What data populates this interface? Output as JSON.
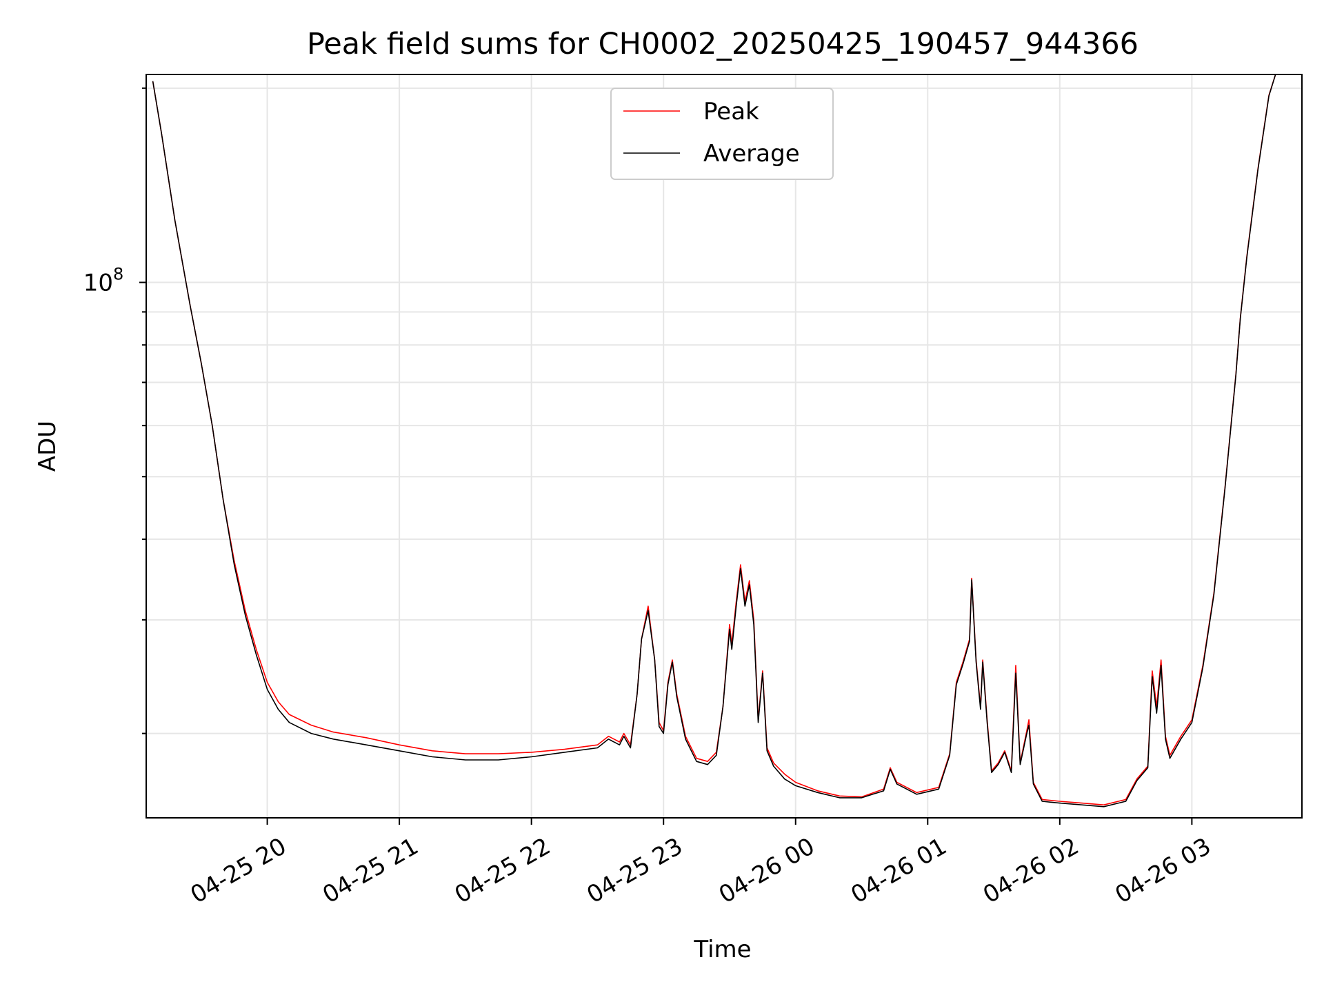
{
  "chart_data": {
    "type": "line",
    "title": "Peak field sums for CH0002_20250425_190457_944366",
    "xlabel": "Time",
    "ylabel": "ADU",
    "y_scale": "log",
    "ylim": [
      14800000,
      210000000
    ],
    "xlim": [
      "04-25 19:05",
      "04-26 03:50"
    ],
    "x_ticks": [
      {
        "time": "04-25 20:00",
        "label": "04-25 20"
      },
      {
        "time": "04-25 21:00",
        "label": "04-25 21"
      },
      {
        "time": "04-25 22:00",
        "label": "04-25 22"
      },
      {
        "time": "04-25 23:00",
        "label": "04-25 23"
      },
      {
        "time": "04-26 00:00",
        "label": "04-26 00"
      },
      {
        "time": "04-26 01:00",
        "label": "04-26 01"
      },
      {
        "time": "04-26 02:00",
        "label": "04-26 02"
      },
      {
        "time": "04-26 03:00",
        "label": "04-26 03"
      }
    ],
    "y_tick_major": {
      "value": 100000000,
      "base": "10",
      "exponent": "8"
    },
    "grid": true,
    "legend": "top-center",
    "series": [
      {
        "name": "Peak",
        "color": "#ff0000",
        "points": [
          [
            "04-25 19:08",
            205000000
          ],
          [
            "04-25 19:12",
            170000000
          ],
          [
            "04-25 19:18",
            125000000
          ],
          [
            "04-25 19:25",
            92000000
          ],
          [
            "04-25 19:30",
            75000000
          ],
          [
            "04-25 19:35",
            60000000
          ],
          [
            "04-25 19:40",
            46000000
          ],
          [
            "04-25 19:45",
            37000000
          ],
          [
            "04-25 19:50",
            31000000
          ],
          [
            "04-25 19:55",
            27000000
          ],
          [
            "04-25 20:00",
            24000000
          ],
          [
            "04-25 20:05",
            22400000
          ],
          [
            "04-25 20:10",
            21400000
          ],
          [
            "04-25 20:20",
            20600000
          ],
          [
            "04-25 20:30",
            20100000
          ],
          [
            "04-25 20:45",
            19700000
          ],
          [
            "04-25 21:00",
            19200000
          ],
          [
            "04-25 21:15",
            18800000
          ],
          [
            "04-25 21:30",
            18600000
          ],
          [
            "04-25 21:45",
            18600000
          ],
          [
            "04-25 22:00",
            18700000
          ],
          [
            "04-25 22:15",
            18900000
          ],
          [
            "04-25 22:30",
            19200000
          ],
          [
            "04-25 22:35",
            19800000
          ],
          [
            "04-25 22:40",
            19400000
          ],
          [
            "04-25 22:42",
            20000000
          ],
          [
            "04-25 22:45",
            19200000
          ],
          [
            "04-25 22:48",
            23000000
          ],
          [
            "04-25 22:50",
            28000000
          ],
          [
            "04-25 22:53",
            31500000
          ],
          [
            "04-25 22:56",
            26000000
          ],
          [
            "04-25 22:58",
            20800000
          ],
          [
            "04-25 23:00",
            20200000
          ],
          [
            "04-25 23:02",
            24000000
          ],
          [
            "04-25 23:04",
            26000000
          ],
          [
            "04-25 23:06",
            23000000
          ],
          [
            "04-25 23:10",
            19800000
          ],
          [
            "04-25 23:15",
            18300000
          ],
          [
            "04-25 23:20",
            18100000
          ],
          [
            "04-25 23:24",
            18700000
          ],
          [
            "04-25 23:27",
            22000000
          ],
          [
            "04-25 23:30",
            29500000
          ],
          [
            "04-25 23:31",
            27500000
          ],
          [
            "04-25 23:33",
            32000000
          ],
          [
            "04-25 23:35",
            36500000
          ],
          [
            "04-25 23:37",
            32000000
          ],
          [
            "04-25 23:39",
            34500000
          ],
          [
            "04-25 23:41",
            30000000
          ],
          [
            "04-25 23:43",
            21000000
          ],
          [
            "04-25 23:45",
            25000000
          ],
          [
            "04-25 23:47",
            19000000
          ],
          [
            "04-25 23:50",
            18000000
          ],
          [
            "04-25 23:55",
            17300000
          ],
          [
            "04-26 00:00",
            16800000
          ],
          [
            "04-26 00:10",
            16300000
          ],
          [
            "04-26 00:20",
            16000000
          ],
          [
            "04-26 00:30",
            15950000
          ],
          [
            "04-26 00:40",
            16400000
          ],
          [
            "04-26 00:43",
            17700000
          ],
          [
            "04-26 00:46",
            16800000
          ],
          [
            "04-26 00:55",
            16200000
          ],
          [
            "04-26 01:05",
            16500000
          ],
          [
            "04-26 01:10",
            18600000
          ],
          [
            "04-26 01:13",
            24000000
          ],
          [
            "04-26 01:16",
            25800000
          ],
          [
            "04-26 01:19",
            28000000
          ],
          [
            "04-26 01:20",
            34800000
          ],
          [
            "04-26 01:22",
            26000000
          ],
          [
            "04-26 01:24",
            22000000
          ],
          [
            "04-26 01:25",
            26000000
          ],
          [
            "04-26 01:27",
            21000000
          ],
          [
            "04-26 01:29",
            17500000
          ],
          [
            "04-26 01:32",
            18000000
          ],
          [
            "04-26 01:35",
            18800000
          ],
          [
            "04-26 01:38",
            17500000
          ],
          [
            "04-26 01:40",
            25500000
          ],
          [
            "04-26 01:42",
            18000000
          ],
          [
            "04-26 01:45",
            20200000
          ],
          [
            "04-26 01:46",
            21000000
          ],
          [
            "04-26 01:48",
            16800000
          ],
          [
            "04-26 01:52",
            15800000
          ],
          [
            "04-26 02:00",
            15700000
          ],
          [
            "04-26 02:10",
            15600000
          ],
          [
            "04-26 02:20",
            15500000
          ],
          [
            "04-26 02:30",
            15800000
          ],
          [
            "04-26 02:35",
            17000000
          ],
          [
            "04-26 02:40",
            17800000
          ],
          [
            "04-26 02:42",
            25000000
          ],
          [
            "04-26 02:44",
            22000000
          ],
          [
            "04-26 02:46",
            26000000
          ],
          [
            "04-26 02:48",
            19800000
          ],
          [
            "04-26 02:50",
            18500000
          ],
          [
            "04-26 02:55",
            19800000
          ],
          [
            "04-26 03:00",
            21000000
          ],
          [
            "04-26 03:05",
            25500000
          ],
          [
            "04-26 03:10",
            33000000
          ],
          [
            "04-26 03:15",
            48000000
          ],
          [
            "04-26 03:20",
            72000000
          ],
          [
            "04-26 03:22",
            88000000
          ],
          [
            "04-26 03:25",
            110000000
          ],
          [
            "04-26 03:30",
            150000000
          ],
          [
            "04-26 03:35",
            195000000
          ],
          [
            "04-26 03:38",
            210000000
          ]
        ]
      },
      {
        "name": "Average",
        "color": "#000000",
        "points": [
          [
            "04-25 19:08",
            205000000
          ],
          [
            "04-25 19:12",
            170000000
          ],
          [
            "04-25 19:18",
            125000000
          ],
          [
            "04-25 19:25",
            92000000
          ],
          [
            "04-25 19:30",
            75000000
          ],
          [
            "04-25 19:35",
            60000000
          ],
          [
            "04-25 19:40",
            46000000
          ],
          [
            "04-25 19:45",
            36500000
          ],
          [
            "04-25 19:50",
            30500000
          ],
          [
            "04-25 19:55",
            26500000
          ],
          [
            "04-25 20:00",
            23400000
          ],
          [
            "04-25 20:05",
            21800000
          ],
          [
            "04-25 20:10",
            20800000
          ],
          [
            "04-25 20:20",
            20000000
          ],
          [
            "04-25 20:30",
            19600000
          ],
          [
            "04-25 20:45",
            19200000
          ],
          [
            "04-25 21:00",
            18800000
          ],
          [
            "04-25 21:15",
            18400000
          ],
          [
            "04-25 21:30",
            18200000
          ],
          [
            "04-25 21:45",
            18200000
          ],
          [
            "04-25 22:00",
            18400000
          ],
          [
            "04-25 22:15",
            18700000
          ],
          [
            "04-25 22:30",
            19000000
          ],
          [
            "04-25 22:35",
            19600000
          ],
          [
            "04-25 22:40",
            19200000
          ],
          [
            "04-25 22:42",
            19800000
          ],
          [
            "04-25 22:45",
            19000000
          ],
          [
            "04-25 22:48",
            23000000
          ],
          [
            "04-25 22:50",
            28000000
          ],
          [
            "04-25 22:53",
            31000000
          ],
          [
            "04-25 22:56",
            26000000
          ],
          [
            "04-25 22:58",
            20500000
          ],
          [
            "04-25 23:00",
            20000000
          ],
          [
            "04-25 23:02",
            23800000
          ],
          [
            "04-25 23:04",
            25800000
          ],
          [
            "04-25 23:06",
            22800000
          ],
          [
            "04-25 23:10",
            19600000
          ],
          [
            "04-25 23:15",
            18100000
          ],
          [
            "04-25 23:20",
            17900000
          ],
          [
            "04-25 23:24",
            18500000
          ],
          [
            "04-25 23:27",
            22000000
          ],
          [
            "04-25 23:30",
            29000000
          ],
          [
            "04-25 23:31",
            27000000
          ],
          [
            "04-25 23:33",
            31500000
          ],
          [
            "04-25 23:35",
            36000000
          ],
          [
            "04-25 23:37",
            31500000
          ],
          [
            "04-25 23:39",
            34000000
          ],
          [
            "04-25 23:41",
            29500000
          ],
          [
            "04-25 23:43",
            20800000
          ],
          [
            "04-25 23:45",
            24800000
          ],
          [
            "04-25 23:47",
            18800000
          ],
          [
            "04-25 23:50",
            17800000
          ],
          [
            "04-25 23:55",
            17000000
          ],
          [
            "04-26 00:00",
            16600000
          ],
          [
            "04-26 00:10",
            16200000
          ],
          [
            "04-26 00:20",
            15900000
          ],
          [
            "04-26 00:30",
            15900000
          ],
          [
            "04-26 00:40",
            16300000
          ],
          [
            "04-26 00:43",
            17600000
          ],
          [
            "04-26 00:46",
            16700000
          ],
          [
            "04-26 00:55",
            16100000
          ],
          [
            "04-26 01:05",
            16400000
          ],
          [
            "04-26 01:10",
            18500000
          ],
          [
            "04-26 01:13",
            23800000
          ],
          [
            "04-26 01:16",
            25600000
          ],
          [
            "04-26 01:19",
            27800000
          ],
          [
            "04-26 01:20",
            34600000
          ],
          [
            "04-26 01:22",
            25800000
          ],
          [
            "04-26 01:24",
            21800000
          ],
          [
            "04-26 01:25",
            25800000
          ],
          [
            "04-26 01:27",
            20800000
          ],
          [
            "04-26 01:29",
            17400000
          ],
          [
            "04-26 01:32",
            17900000
          ],
          [
            "04-26 01:35",
            18700000
          ],
          [
            "04-26 01:38",
            17400000
          ],
          [
            "04-26 01:40",
            24800000
          ],
          [
            "04-26 01:42",
            17900000
          ],
          [
            "04-26 01:45",
            20000000
          ],
          [
            "04-26 01:46",
            20600000
          ],
          [
            "04-26 01:48",
            16700000
          ],
          [
            "04-26 01:52",
            15700000
          ],
          [
            "04-26 02:00",
            15600000
          ],
          [
            "04-26 02:10",
            15500000
          ],
          [
            "04-26 02:20",
            15400000
          ],
          [
            "04-26 02:30",
            15700000
          ],
          [
            "04-26 02:35",
            16900000
          ],
          [
            "04-26 02:40",
            17700000
          ],
          [
            "04-26 02:42",
            24500000
          ],
          [
            "04-26 02:44",
            21500000
          ],
          [
            "04-26 02:46",
            25500000
          ],
          [
            "04-26 02:48",
            19600000
          ],
          [
            "04-26 02:50",
            18300000
          ],
          [
            "04-26 02:55",
            19600000
          ],
          [
            "04-26 03:00",
            20800000
          ],
          [
            "04-26 03:05",
            25300000
          ],
          [
            "04-26 03:10",
            32800000
          ],
          [
            "04-26 03:15",
            47800000
          ],
          [
            "04-26 03:20",
            71800000
          ],
          [
            "04-26 03:22",
            87800000
          ],
          [
            "04-26 03:25",
            109500000
          ],
          [
            "04-26 03:30",
            149500000
          ],
          [
            "04-26 03:35",
            194500000
          ],
          [
            "04-26 03:38",
            210000000
          ]
        ]
      }
    ]
  }
}
